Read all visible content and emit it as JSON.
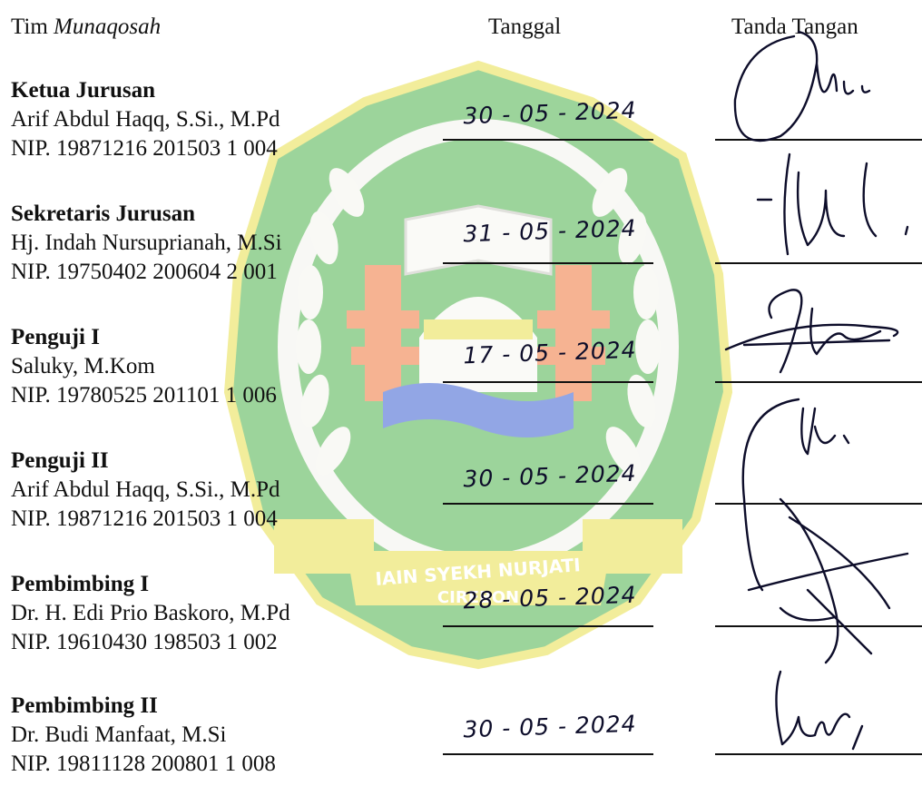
{
  "header": {
    "team_prefix": "Tim ",
    "team_name": "Munaqosah",
    "date_col": "Tanggal",
    "sign_col": "Tanda Tangan"
  },
  "watermark": {
    "line1": "IAIN SYEKH NURJATI",
    "line2": "CIREBON"
  },
  "members": [
    {
      "role": "Ketua Jurusan",
      "name": "Arif Abdul Haqq, S.Si., M.Pd",
      "nip": "NIP. 19871216 201503 1 004",
      "date": "30 - 05 - 2024"
    },
    {
      "role": "Sekretaris Jurusan",
      "name": "Hj. Indah Nursuprianah, M.Si",
      "nip": "NIP. 19750402 200604 2 001",
      "date": "31 - 05 - 2024"
    },
    {
      "role": "Penguji I",
      "name": "Saluky, M.Kom",
      "nip": "NIP. 19780525 201101 1 006",
      "date": "17 - 05 - 2024"
    },
    {
      "role": "Penguji II",
      "name": "Arif Abdul Haqq, S.Si., M.Pd",
      "nip": "NIP. 19871216 201503 1 004",
      "date": "30 - 05 - 2024"
    },
    {
      "role": "Pembimbing I",
      "name": "Dr. H. Edi Prio Baskoro, M.Pd",
      "nip": "NIP. 19610430 198503 1 002",
      "date": "28 - 05 - 2024"
    },
    {
      "role": "Pembimbing II",
      "name": "Dr. Budi Manfaat, M.Si",
      "nip": "NIP. 19811128 200801 1 008",
      "date": "30 - 05 - 2024"
    }
  ],
  "colors": {
    "watermark_green": "#4db24a",
    "watermark_yellow": "#e8e04a",
    "watermark_orange": "#f0763a",
    "watermark_blue": "#3a5fd0",
    "ink": "#0d0d2a"
  }
}
